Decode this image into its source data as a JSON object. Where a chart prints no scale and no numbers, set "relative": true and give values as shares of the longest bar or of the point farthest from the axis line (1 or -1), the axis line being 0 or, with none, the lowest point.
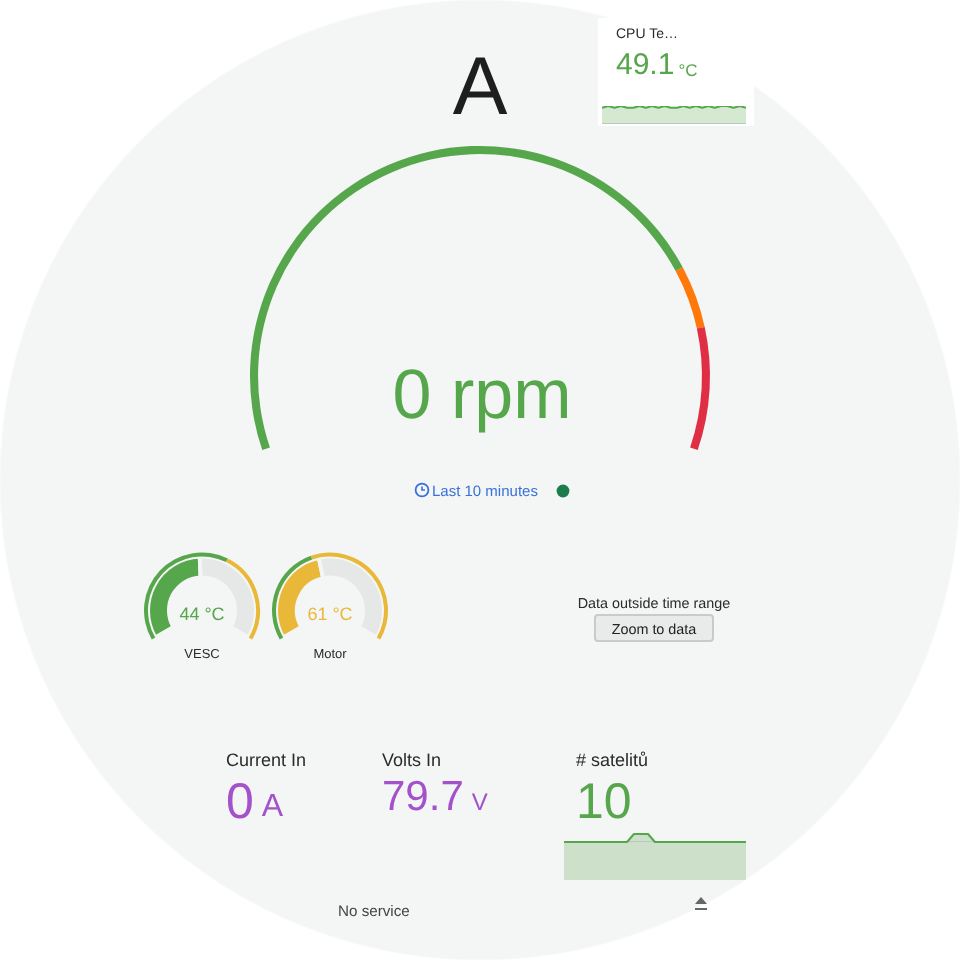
{
  "chart_data": [
    {
      "type": "donut",
      "title": "A",
      "categories": [
        null,
        null,
        null
      ],
      "values": [
        78.4,
        7.3,
        14.3
      ],
      "colors": [
        "#56a64b",
        "#ff780a",
        "#e02f44"
      ],
      "annotations": [
        "0 rpm",
        "Last 10 minutes"
      ]
    },
    {
      "type": "area",
      "title": "CPU Te…",
      "relative": true,
      "categories": [
        null,
        null,
        null,
        null,
        null,
        null,
        null,
        null,
        null,
        null,
        null,
        null,
        null,
        null,
        null,
        null,
        null,
        null,
        null,
        null,
        null,
        null,
        null,
        null
      ],
      "values": [
        0.9,
        1,
        0.9,
        1,
        0.9,
        0.9,
        1,
        0.9,
        1,
        0.9,
        1,
        0.9,
        0.9,
        1,
        0.9,
        1,
        0.9,
        1,
        0.9,
        1,
        1,
        0.9,
        1,
        0.9
      ],
      "color": "#56a64b",
      "annotations": [
        "49.1",
        "°C"
      ]
    },
    {
      "type": "donut",
      "title": "VESC",
      "categories": [
        null,
        null
      ],
      "series": [
        {
          "values": [
            49,
            51
          ],
          "colors": [
            "#56a64b",
            "#e6e8e8"
          ]
        },
        {
          "values": [
            61,
            39
          ],
          "colors": [
            "#56a64b",
            "#eab839"
          ]
        }
      ],
      "annotations": [
        "44 °C"
      ]
    },
    {
      "type": "donut",
      "title": "Motor",
      "categories": [
        null,
        null
      ],
      "series": [
        {
          "values": [
            45,
            55
          ],
          "colors": [
            "#eab839",
            "#e6e8e8"
          ]
        },
        {
          "values": [
            42,
            58
          ],
          "colors": [
            "#56a64b",
            "#eab839"
          ]
        }
      ],
      "annotations": [
        "61 °C"
      ]
    },
    {
      "type": "other",
      "title": "Current In",
      "color": "#a352cc",
      "annotations": [
        "0",
        "A"
      ]
    },
    {
      "type": "other",
      "title": "Volts In",
      "color": "#a352cc",
      "annotations": [
        "79.7",
        "V"
      ]
    },
    {
      "type": "area",
      "title": "# satelitů",
      "relative": true,
      "categories": [
        null,
        null,
        null,
        null,
        null,
        null,
        null,
        null,
        null,
        null,
        null,
        null,
        null,
        null,
        null,
        null,
        null,
        null,
        null,
        null,
        null,
        null,
        null,
        null,
        null,
        null,
        null
      ],
      "values": [
        0,
        0,
        0,
        0,
        0,
        0,
        0,
        0,
        0,
        0,
        1,
        1,
        1,
        0,
        0,
        0,
        0,
        0,
        0,
        0,
        0,
        0,
        0,
        0,
        0,
        0,
        0
      ],
      "color": "#56a64b",
      "annotations": [
        "10"
      ]
    },
    {
      "type": "other",
      "annotations": [
        "Data outside time range",
        "Zoom to data"
      ]
    },
    {
      "type": "other",
      "annotations": [
        "No service"
      ]
    }
  ]
}
